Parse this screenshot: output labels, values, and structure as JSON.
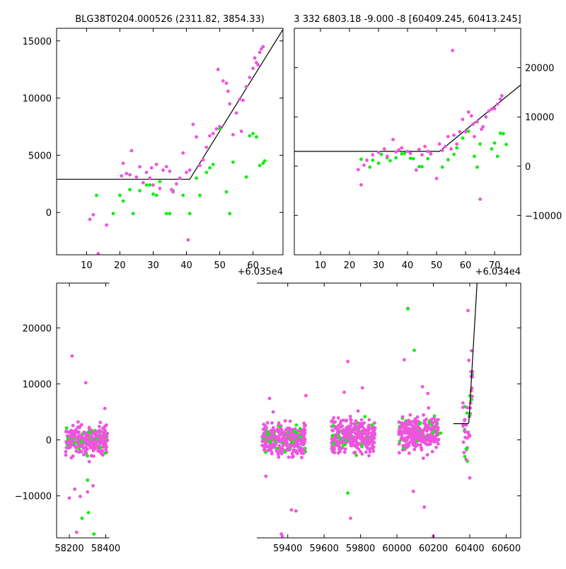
{
  "colors": {
    "magenta": "#ee55dd",
    "green": "#11ee11",
    "model": "#000000",
    "axis": "#000000"
  },
  "chart_data": [
    {
      "type": "scatter",
      "title": "BLG38T0204.000526 (2311.82, 3854.33)",
      "xlim": [
        1,
        69
      ],
      "ylim": [
        -3700,
        16100
      ],
      "xticks": [
        10,
        20,
        30,
        40,
        50,
        60
      ],
      "yticks": [
        0,
        5000,
        10000,
        15000
      ],
      "y_axis_side": "left",
      "offset_label": "+6.035e4",
      "series": [
        {
          "color": "#ee55dd",
          "x": [
            11,
            12,
            13.5,
            16,
            20.5,
            21,
            22,
            23,
            23.5,
            25,
            26,
            27,
            28,
            29,
            29.5,
            30,
            31,
            32,
            33,
            34,
            35,
            35.5,
            36,
            37,
            38,
            39,
            40,
            40.5,
            41,
            42,
            43,
            44,
            45,
            46,
            47,
            48,
            49,
            49.5,
            50,
            51,
            52,
            52.5,
            53,
            54,
            55,
            56,
            56.5,
            57,
            58,
            59,
            60,
            60.5,
            61,
            61.5,
            62,
            62.5,
            63
          ],
          "y": [
            -600,
            -200,
            -3600,
            -1100,
            3200,
            4300,
            3400,
            3300,
            5400,
            3100,
            4000,
            2600,
            3500,
            3000,
            3900,
            2400,
            4200,
            2100,
            3700,
            4000,
            3600,
            2000,
            1800,
            2500,
            3000,
            5200,
            3500,
            -2400,
            3700,
            7700,
            6600,
            4100,
            4600,
            5700,
            6700,
            6900,
            7300,
            12500,
            7500,
            11500,
            11300,
            10600,
            9500,
            6800,
            8700,
            9900,
            7100,
            9800,
            11000,
            11800,
            12600,
            13500,
            13100,
            12900,
            14000,
            14300,
            14500
          ]
        },
        {
          "color": "#11ee11",
          "x": [
            13,
            18,
            20,
            21,
            23,
            24,
            26,
            28,
            29,
            30,
            31,
            32,
            34,
            35,
            36,
            39,
            41,
            43,
            44,
            46,
            47,
            48,
            50,
            52,
            53,
            54,
            58,
            59,
            60,
            61,
            62,
            63,
            63.5
          ],
          "y": [
            1500,
            -100,
            1500,
            1000,
            2000,
            -100,
            1900,
            2400,
            2400,
            1600,
            1500,
            2700,
            -100,
            -100,
            1900,
            1500,
            -100,
            3000,
            1500,
            3500,
            3900,
            4200,
            7300,
            1800,
            -100,
            4400,
            3100,
            6700,
            6900,
            6600,
            4100,
            4300,
            4500
          ]
        }
      ],
      "model_line": {
        "x": [
          1,
          41,
          69
        ],
        "y": [
          2900,
          2900,
          16000
        ]
      }
    },
    {
      "type": "scatter",
      "title": "3 332 6803.18 -9.000 -8 [60409.245, 60413.245]",
      "xlim": [
        1,
        79
      ],
      "ylim": [
        -18000,
        28000
      ],
      "xticks": [
        10,
        20,
        30,
        40,
        50,
        60,
        70
      ],
      "yticks": [
        -10000,
        0,
        10000,
        20000
      ],
      "y_axis_side": "right",
      "offset_label": "+6.034e4",
      "series": [
        {
          "color": "#ee55dd",
          "x": [
            23,
            24,
            25,
            26,
            28,
            30,
            32,
            33,
            35,
            36,
            37,
            38,
            40,
            41,
            43,
            44,
            45,
            46,
            47,
            48,
            50,
            51,
            52,
            53,
            54,
            55,
            55.5,
            56,
            57,
            58,
            59,
            60,
            61,
            62,
            62.5,
            63,
            64,
            65,
            65.5,
            66,
            67,
            68,
            69,
            70,
            71,
            72,
            72.5
          ],
          "y": [
            -700,
            -3800,
            200,
            1200,
            2300,
            2800,
            3500,
            2000,
            5400,
            2900,
            3300,
            3700,
            3000,
            2600,
            -800,
            3400,
            2300,
            4000,
            3000,
            2500,
            -2500,
            4500,
            3200,
            4000,
            6000,
            3500,
            23500,
            6300,
            4500,
            7000,
            9500,
            7000,
            11000,
            10200,
            8500,
            6000,
            9000,
            -6700,
            7500,
            8000,
            10000,
            11200,
            11600,
            11700,
            12600,
            13600,
            14300
          ]
        },
        {
          "color": "#11ee11",
          "x": [
            24,
            27,
            28,
            30,
            31,
            33,
            34,
            36,
            38,
            39,
            41,
            42,
            44,
            45,
            47,
            48,
            52,
            54,
            56,
            57,
            59,
            61,
            63,
            64,
            65,
            69,
            70,
            71,
            72,
            73,
            74
          ],
          "y": [
            1400,
            -200,
            1200,
            600,
            2400,
            1700,
            1100,
            1700,
            2500,
            2600,
            1600,
            1500,
            -100,
            -100,
            1500,
            2500,
            -200,
            1300,
            2400,
            3700,
            5700,
            7100,
            2000,
            -200,
            4500,
            3500,
            4700,
            2000,
            6700,
            6600,
            4400
          ]
        }
      ],
      "model_line": {
        "x": [
          1,
          51,
          79
        ],
        "y": [
          3000,
          3000,
          16500
        ]
      }
    },
    {
      "type": "scatter",
      "xlim": [
        58130,
        60680
      ],
      "ylim": [
        -17500,
        28000
      ],
      "xticks": [
        58200,
        58400,
        59400,
        59600,
        59800,
        60000,
        60200,
        60400,
        60600
      ],
      "yticks": [
        -10000,
        0,
        10000,
        20000
      ],
      "y_axis_side": "left",
      "axis_break": [
        58420,
        59230
      ],
      "seasons": [
        {
          "start": 58180,
          "end": 58410,
          "center": 0,
          "spread": 1300
        },
        {
          "start": 59260,
          "end": 59500,
          "center": 0,
          "spread": 1400
        },
        {
          "start": 59640,
          "end": 59880,
          "center": 800,
          "spread": 1500
        },
        {
          "start": 60010,
          "end": 60230,
          "center": 1200,
          "spread": 1500
        },
        {
          "start": 60360,
          "end": 60415,
          "center": 2000,
          "spread": 2500
        }
      ],
      "outliers": [
        {
          "color": "#ee55dd",
          "x": [
            58200,
            58215,
            58230,
            58240,
            58260,
            58290,
            58300,
            58310,
            58330,
            58395,
            59280,
            59300,
            59320,
            59365,
            59370,
            59420,
            59445,
            59500,
            59710,
            59730,
            59745,
            59810,
            60040,
            60060,
            60090,
            60140,
            60150,
            60170,
            60200,
            60380,
            60390,
            60395,
            60400
          ],
          "y": [
            -10400,
            15000,
            -8800,
            -16500,
            -10100,
            10200,
            -9300,
            -3900,
            -8200,
            5600,
            -6500,
            7400,
            5000,
            -16800,
            -17200,
            -12500,
            -12700,
            7900,
            8500,
            14000,
            -14000,
            9300,
            14300,
            23500,
            -9200,
            9500,
            -12000,
            8300,
            -17200,
            -3500,
            23100,
            14200,
            -6800
          ]
        },
        {
          "color": "#11ee11",
          "x": [
            58270,
            58300,
            58305,
            58335,
            59705,
            59730,
            60060,
            60095,
            60240,
            60385,
            60400
          ],
          "y": [
            -14000,
            -7200,
            -13000,
            -16800,
            -1000,
            -9500,
            23400,
            16000,
            1200,
            4800,
            4400
          ]
        }
      ],
      "model_line": {
        "x": [
          60310,
          60390,
          60395,
          60440
        ],
        "y": [
          2900,
          2900,
          3100,
          28000
        ]
      }
    }
  ]
}
